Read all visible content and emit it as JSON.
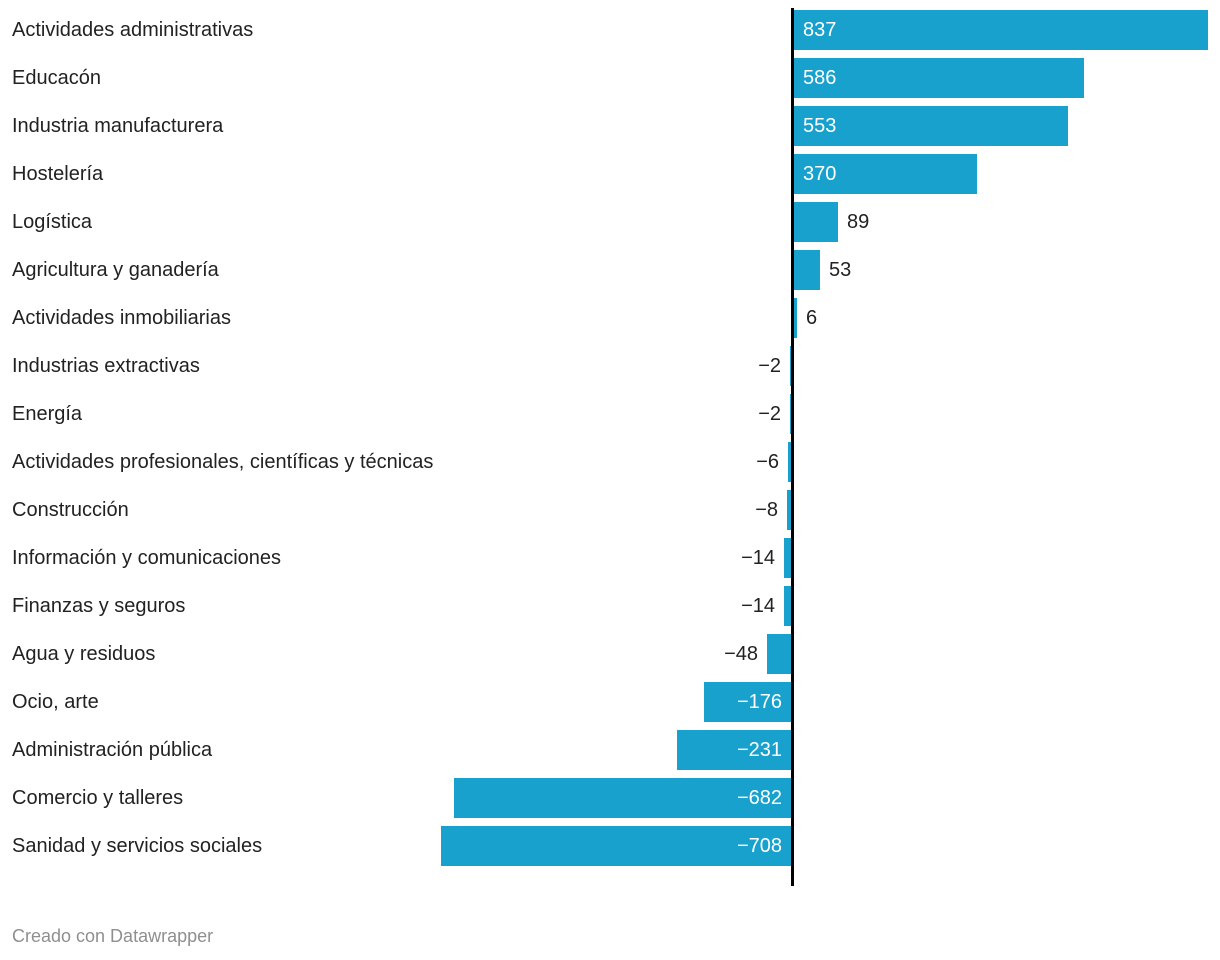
{
  "chart_data": {
    "type": "bar",
    "orientation": "horizontal",
    "title": "",
    "xlabel": "",
    "ylabel": "",
    "grid": false,
    "legend": false,
    "baseline": 0,
    "categories": [
      "Actividades administrativas",
      "Educacón",
      "Industria manufacturera",
      "Hostelería",
      "Logística",
      "Agricultura y ganadería",
      "Actividades inmobiliarias",
      "Industrias extractivas",
      "Energía",
      "Actividades profesionales, científicas y técnicas",
      "Construcción",
      "Información y comunicaciones",
      "Finanzas y seguros",
      "Agua y residuos",
      "Ocio, arte",
      "Administración pública",
      "Comercio y talleres",
      "Sanidad y servicios sociales"
    ],
    "values": [
      837,
      586,
      553,
      370,
      89,
      53,
      6,
      -2,
      -2,
      -6,
      -8,
      -14,
      -14,
      -48,
      -176,
      -231,
      -682,
      -708
    ],
    "display_values": [
      "837",
      "586",
      "553",
      "370",
      "89",
      "53",
      "6",
      "−2",
      "−2",
      "−6",
      "−8",
      "−14",
      "−14",
      "−48",
      "−176",
      "−231",
      "−682",
      "−708"
    ],
    "bar_color": "#18a1cd",
    "baseline_color": "#000000",
    "category_label_color": "#222222",
    "value_label_inside_color": "#ffffff",
    "value_label_outside_color": "#222222"
  },
  "footer": {
    "text": "Creado con Datawrapper"
  }
}
